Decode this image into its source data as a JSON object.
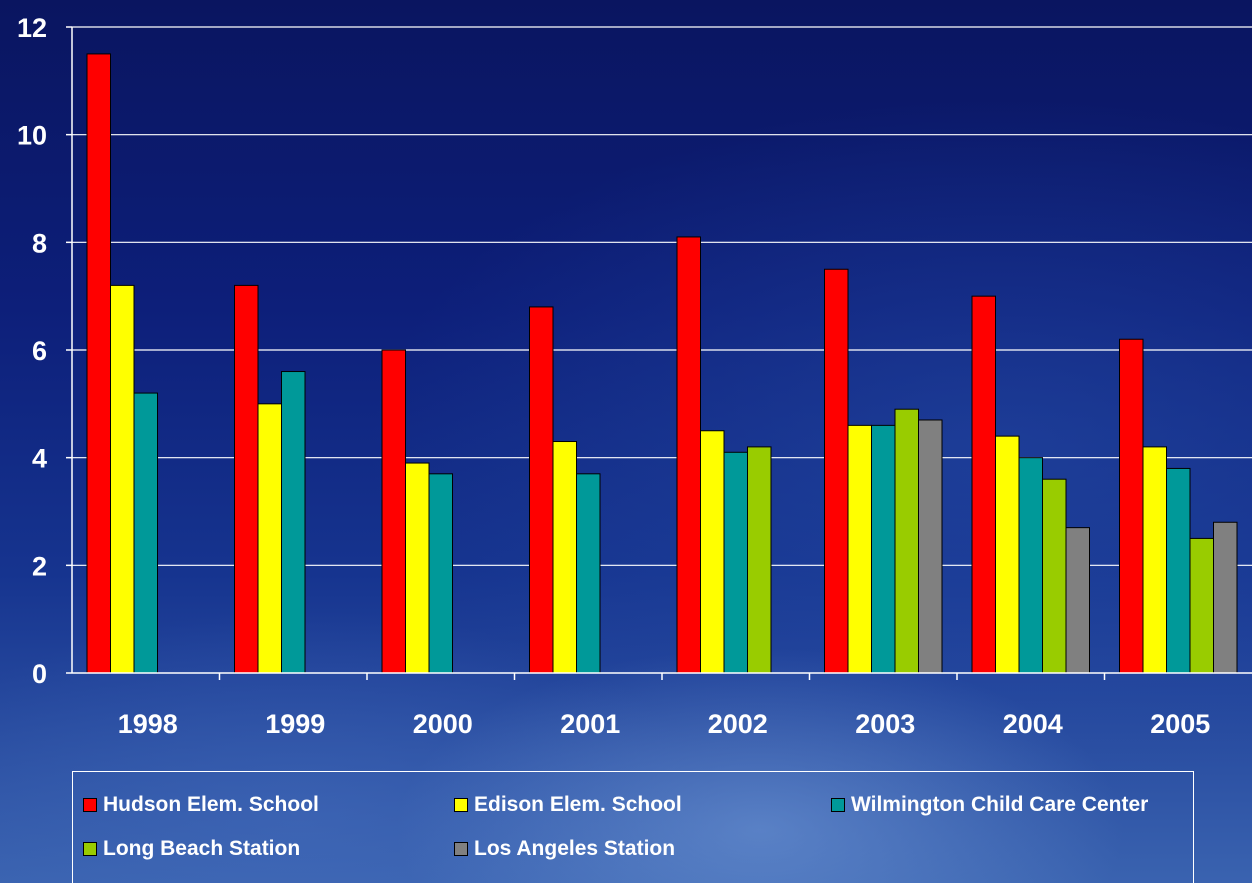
{
  "chart_data": {
    "type": "bar",
    "categories": [
      "1998",
      "1999",
      "2000",
      "2001",
      "2002",
      "2003",
      "2004",
      "2005"
    ],
    "ylim": [
      0,
      12
    ],
    "yticks": [
      0,
      2,
      4,
      6,
      8,
      10,
      12
    ],
    "grid": true,
    "legend_position": "bottom",
    "series": [
      {
        "name": "Hudson Elem. School",
        "color": "#ff0000",
        "values": [
          11.5,
          7.2,
          6.0,
          6.8,
          8.1,
          7.5,
          7.0,
          6.2
        ]
      },
      {
        "name": "Edison Elem. School",
        "color": "#ffff00",
        "values": [
          7.2,
          5.0,
          3.9,
          4.3,
          4.5,
          4.6,
          4.4,
          4.2
        ]
      },
      {
        "name": "Wilmington Child Care Center",
        "color": "#009999",
        "values": [
          5.2,
          5.6,
          3.7,
          3.7,
          4.1,
          4.6,
          4.0,
          3.8
        ]
      },
      {
        "name": "Long Beach Station",
        "color": "#99cc00",
        "values": [
          null,
          null,
          null,
          null,
          4.2,
          4.9,
          3.6,
          2.5
        ]
      },
      {
        "name": "Los Angeles Station",
        "color": "#808080",
        "values": [
          null,
          null,
          null,
          null,
          null,
          4.7,
          2.7,
          2.8
        ]
      }
    ]
  }
}
